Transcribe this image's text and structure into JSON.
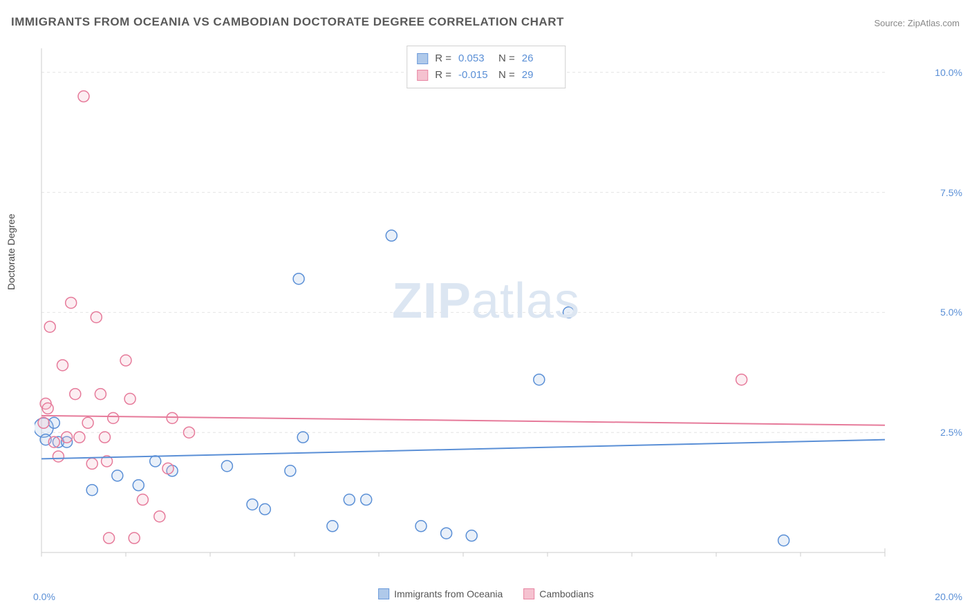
{
  "title": "IMMIGRANTS FROM OCEANIA VS CAMBODIAN DOCTORATE DEGREE CORRELATION CHART",
  "source": "Source: ZipAtlas.com",
  "y_axis_label": "Doctorate Degree",
  "watermark_a": "ZIP",
  "watermark_b": "atlas",
  "chart": {
    "type": "scatter",
    "xlim": [
      0,
      20
    ],
    "ylim": [
      0,
      10.5
    ],
    "x_ticks_visible": [
      "0.0%",
      "20.0%"
    ],
    "x_tick_positions_minor": [
      0,
      2,
      4,
      6,
      8,
      10,
      12,
      14,
      16,
      18,
      20
    ],
    "y_ticks": [
      {
        "v": 2.5,
        "label": "2.5%"
      },
      {
        "v": 5.0,
        "label": "5.0%"
      },
      {
        "v": 7.5,
        "label": "7.5%"
      },
      {
        "v": 10.0,
        "label": "10.0%"
      }
    ],
    "background_color": "#ffffff",
    "grid_color": "#e4e4e4",
    "grid_dash": "4 4",
    "axis_color": "#cccccc",
    "marker_radius": 8,
    "marker_stroke_width": 1.5,
    "marker_fill_opacity": 0.25,
    "trend_line_width": 2,
    "series": [
      {
        "name": "Immigrants from Oceania",
        "color_stroke": "#5a8fd6",
        "color_fill": "#a7c4e8",
        "R": "0.053",
        "N": "26",
        "trend": {
          "y0": 1.95,
          "y1": 2.35
        },
        "points": [
          {
            "x": 0.05,
            "y": 2.6,
            "r": 14
          },
          {
            "x": 0.1,
            "y": 2.35
          },
          {
            "x": 0.3,
            "y": 2.7
          },
          {
            "x": 0.4,
            "y": 2.3
          },
          {
            "x": 0.6,
            "y": 2.3
          },
          {
            "x": 1.2,
            "y": 1.3
          },
          {
            "x": 1.8,
            "y": 1.6
          },
          {
            "x": 2.3,
            "y": 1.4
          },
          {
            "x": 2.7,
            "y": 1.9
          },
          {
            "x": 3.1,
            "y": 1.7
          },
          {
            "x": 4.4,
            "y": 1.8
          },
          {
            "x": 5.0,
            "y": 1.0
          },
          {
            "x": 5.3,
            "y": 0.9
          },
          {
            "x": 5.9,
            "y": 1.7
          },
          {
            "x": 6.1,
            "y": 5.7
          },
          {
            "x": 6.2,
            "y": 2.4
          },
          {
            "x": 6.9,
            "y": 0.55
          },
          {
            "x": 7.3,
            "y": 1.1
          },
          {
            "x": 7.7,
            "y": 1.1
          },
          {
            "x": 8.3,
            "y": 6.6
          },
          {
            "x": 9.0,
            "y": 0.55
          },
          {
            "x": 9.6,
            "y": 0.4
          },
          {
            "x": 10.2,
            "y": 0.35
          },
          {
            "x": 11.8,
            "y": 3.6
          },
          {
            "x": 12.5,
            "y": 5.0
          },
          {
            "x": 17.6,
            "y": 0.25
          }
        ]
      },
      {
        "name": "Cambodians",
        "color_stroke": "#e67a9a",
        "color_fill": "#f4bccb",
        "R": "-0.015",
        "N": "29",
        "trend": {
          "y0": 2.85,
          "y1": 2.65
        },
        "points": [
          {
            "x": 0.05,
            "y": 2.7
          },
          {
            "x": 0.1,
            "y": 3.1
          },
          {
            "x": 0.15,
            "y": 3.0
          },
          {
            "x": 0.2,
            "y": 4.7
          },
          {
            "x": 0.3,
            "y": 2.3
          },
          {
            "x": 0.4,
            "y": 2.0
          },
          {
            "x": 0.5,
            "y": 3.9
          },
          {
            "x": 0.6,
            "y": 2.4
          },
          {
            "x": 0.7,
            "y": 5.2
          },
          {
            "x": 0.8,
            "y": 3.3
          },
          {
            "x": 0.9,
            "y": 2.4
          },
          {
            "x": 1.0,
            "y": 9.5
          },
          {
            "x": 1.1,
            "y": 2.7
          },
          {
            "x": 1.2,
            "y": 1.85
          },
          {
            "x": 1.3,
            "y": 4.9
          },
          {
            "x": 1.4,
            "y": 3.3
          },
          {
            "x": 1.5,
            "y": 2.4
          },
          {
            "x": 1.55,
            "y": 1.9
          },
          {
            "x": 1.6,
            "y": 0.3
          },
          {
            "x": 1.7,
            "y": 2.8
          },
          {
            "x": 2.0,
            "y": 4.0
          },
          {
            "x": 2.1,
            "y": 3.2
          },
          {
            "x": 2.2,
            "y": 0.3
          },
          {
            "x": 2.4,
            "y": 1.1
          },
          {
            "x": 2.8,
            "y": 0.75
          },
          {
            "x": 3.0,
            "y": 1.75
          },
          {
            "x": 3.1,
            "y": 2.8
          },
          {
            "x": 3.5,
            "y": 2.5
          },
          {
            "x": 16.6,
            "y": 3.6
          }
        ]
      }
    ]
  },
  "legend": {
    "series1_label": "Immigrants from Oceania",
    "series2_label": "Cambodians"
  },
  "stat_labels": {
    "r": "R  =",
    "n": "N  ="
  }
}
